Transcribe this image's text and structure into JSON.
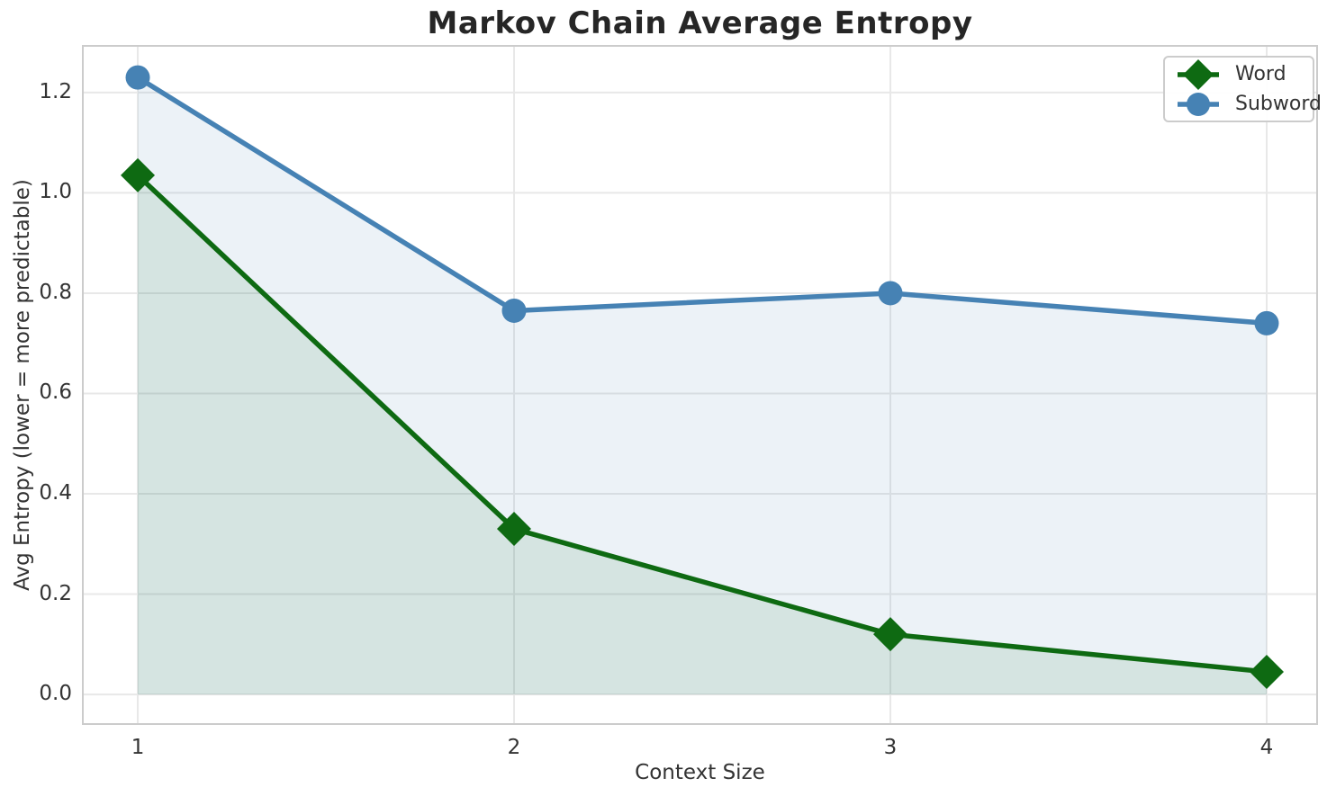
{
  "chart_data": {
    "type": "line",
    "title": "Markov Chain Average Entropy",
    "xlabel": "Context Size",
    "ylabel": "Avg Entropy (lower = more predictable)",
    "x": [
      1,
      2,
      3,
      4
    ],
    "series": [
      {
        "name": "Word",
        "marker": "diamond",
        "color": "#0e6a12",
        "fill_opacity": 0.1,
        "values": [
          1.035,
          0.33,
          0.12,
          0.045
        ]
      },
      {
        "name": "Subword",
        "marker": "circle",
        "color": "#4682b4",
        "fill_opacity": 0.1,
        "values": [
          1.23,
          0.765,
          0.8,
          0.74
        ]
      }
    ],
    "xtick_labels": [
      "1",
      "2",
      "3",
      "4"
    ],
    "ytick_labels": [
      "0.0",
      "0.2",
      "0.4",
      "0.6",
      "0.8",
      "1.0",
      "1.2"
    ],
    "xlim": [
      0.854,
      4.134
    ],
    "ylim": [
      -0.059,
      1.293
    ],
    "grid": true,
    "area_fill_baseline": 0.0,
    "legend_position": "upper right"
  },
  "colors": {
    "background": "#ffffff",
    "grid": "#e8e8e8",
    "spine": "#cccccc",
    "tick_text": "#333333",
    "title_text": "#262626"
  }
}
